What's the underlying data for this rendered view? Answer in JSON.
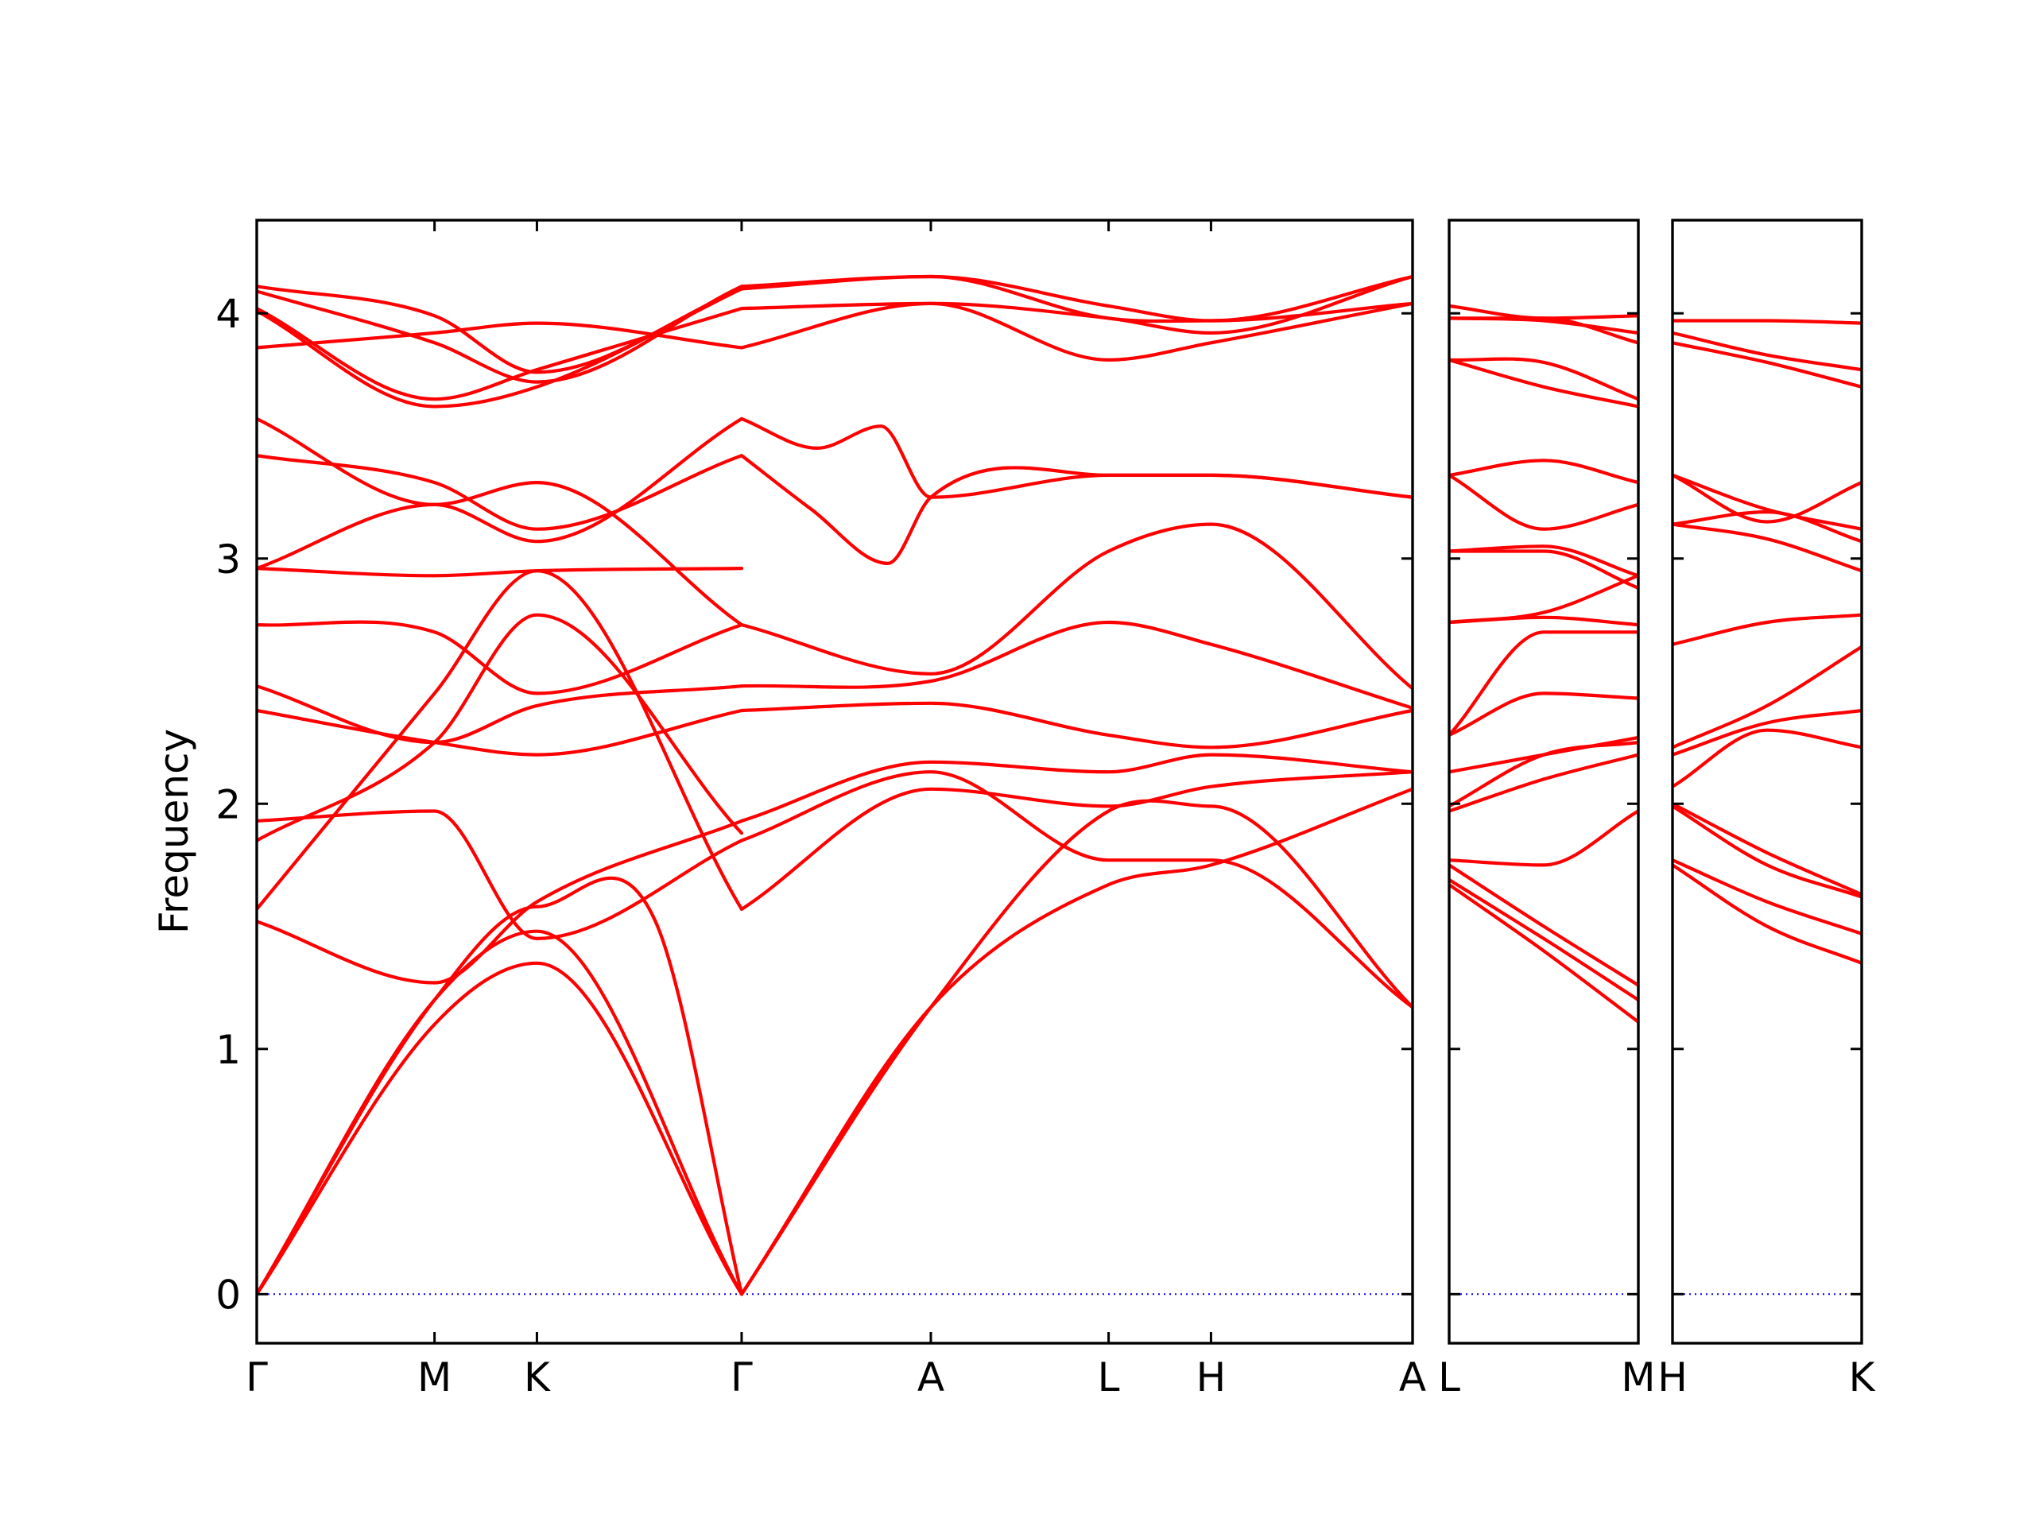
{
  "chart_data": {
    "type": "line",
    "ylabel": "Frequency",
    "xlabel": "",
    "ylim": [
      -0.2,
      4.38
    ],
    "yticks": [
      0,
      1,
      2,
      3,
      4
    ],
    "grid": false,
    "colors": {
      "bands": "#ff0000",
      "zero_line": "#0000ff",
      "frame": "#000000"
    },
    "panels": [
      {
        "id": "panel-1",
        "path_labels": [
          "Γ",
          "M",
          "K",
          "Γ",
          "A",
          "L",
          "H",
          "A"
        ],
        "path_distance": [
          0,
          0.1538,
          0.2424,
          0.4195,
          0.5832,
          0.737,
          0.8256,
          1.0
        ],
        "bands": [
          {
            "x": [
              0,
              0.1538,
              0.2424,
              0.4195
            ],
            "values": [
              0,
              1.1,
              1.35,
              0
            ]
          },
          {
            "x": [
              0,
              0.1538,
              0.2424,
              0.4195
            ],
            "values": [
              0,
              1.2,
              1.48,
              0
            ]
          },
          {
            "x": [
              0,
              0.1538,
              0.2424,
              0.345,
              0.4195
            ],
            "values": [
              0,
              1.2,
              1.58,
              1.52,
              0
            ]
          },
          {
            "x": [
              0,
              0.1538,
              0.2424,
              0.4195
            ],
            "values": [
              1.52,
              1.27,
              1.6,
              1.93
            ]
          },
          {
            "x": [
              0,
              0.1538,
              0.2424,
              0.4195
            ],
            "values": [
              1.57,
              2.45,
              2.95,
              1.57
            ]
          },
          {
            "x": [
              0,
              0.1538,
              0.2424,
              0.4195
            ],
            "values": [
              1.93,
              1.97,
              1.45,
              1.85
            ]
          },
          {
            "x": [
              0,
              0.1538,
              0.2424,
              0.4195
            ],
            "values": [
              1.85,
              2.25,
              2.77,
              1.88
            ]
          },
          {
            "x": [
              0,
              0.1538,
              0.2424,
              0.4195
            ],
            "values": [
              2.38,
              2.25,
              2.2,
              2.38
            ]
          },
          {
            "x": [
              0,
              0.1538,
              0.2424,
              0.4195
            ],
            "values": [
              2.48,
              2.25,
              2.4,
              2.48
            ]
          },
          {
            "x": [
              0,
              0.1538,
              0.2424,
              0.4195
            ],
            "values": [
              2.73,
              2.7,
              2.45,
              2.73
            ]
          },
          {
            "x": [
              0,
              0.1538,
              0.2424,
              0.4195
            ],
            "values": [
              2.96,
              2.93,
              2.95,
              2.96
            ]
          },
          {
            "x": [
              0,
              0.1538,
              0.2424,
              0.4195
            ],
            "values": [
              2.96,
              3.22,
              3.07,
              3.57
            ]
          },
          {
            "x": [
              0,
              0.1538,
              0.2424,
              0.4195
            ],
            "values": [
              3.42,
              3.31,
              3.12,
              3.42
            ]
          },
          {
            "x": [
              0,
              0.1538,
              0.2424,
              0.4195
            ],
            "values": [
              3.57,
              3.22,
              3.31,
              2.73
            ]
          },
          {
            "x": [
              0,
              0.1538,
              0.2424,
              0.4195
            ],
            "values": [
              3.86,
              3.92,
              3.96,
              3.86
            ]
          },
          {
            "x": [
              0,
              0.1538,
              0.2424,
              0.4195
            ],
            "values": [
              4.01,
              3.62,
              3.7,
              4.1
            ]
          },
          {
            "x": [
              0,
              0.1538,
              0.2424,
              0.4195
            ],
            "values": [
              4.02,
              3.65,
              3.77,
              4.02
            ]
          },
          {
            "x": [
              0,
              0.1538,
              0.2424,
              0.4195
            ],
            "values": [
              4.09,
              3.88,
              3.72,
              4.11
            ]
          },
          {
            "x": [
              0,
              0.1538,
              0.2424,
              0.4195
            ],
            "values": [
              4.11,
              3.99,
              3.76,
              4.1
            ]
          },
          {
            "x": [
              0.4195,
              0.5832,
              0.737,
              0.8256,
              1.0
            ],
            "values": [
              0,
              1.17,
              1.67,
              1.75,
              2.06
            ]
          },
          {
            "x": [
              0.4195,
              0.5832,
              0.737,
              0.8256,
              1.0
            ],
            "values": [
              0,
              1.17,
              1.97,
              1.99,
              1.17
            ]
          },
          {
            "x": [
              0.4195,
              0.5832,
              0.737,
              0.8256,
              1.0
            ],
            "values": [
              1.57,
              2.06,
              1.99,
              2.07,
              2.13
            ]
          },
          {
            "x": [
              0.4195,
              0.5832,
              0.737,
              0.8256,
              1.0
            ],
            "values": [
              1.85,
              2.13,
              1.77,
              1.77,
              1.17
            ]
          },
          {
            "x": [
              0.4195,
              0.5832,
              0.737,
              0.8256,
              1.0
            ],
            "values": [
              1.93,
              2.17,
              2.13,
              2.2,
              2.13
            ]
          },
          {
            "x": [
              0.4195,
              0.5832,
              0.737,
              0.8256,
              1.0
            ],
            "values": [
              2.38,
              2.41,
              2.28,
              2.23,
              2.38
            ]
          },
          {
            "x": [
              0.4195,
              0.5832,
              0.737,
              0.8256,
              1.0
            ],
            "values": [
              2.48,
              2.5,
              2.74,
              2.65,
              2.39
            ]
          },
          {
            "x": [
              0.4195,
              0.5832,
              0.737,
              0.8256,
              1.0
            ],
            "values": [
              2.73,
              2.53,
              3.03,
              3.14,
              2.47
            ]
          },
          {
            "x": [
              0.4195,
              0.48,
              0.546,
              0.5832,
              0.737,
              0.8256,
              1.0
            ],
            "values": [
              3.42,
              3.2,
              2.98,
              3.25,
              3.34,
              3.34,
              3.25
            ]
          },
          {
            "x": [
              0.4195,
              0.485,
              0.54,
              0.5832,
              0.737,
              0.8256,
              1.0
            ],
            "values": [
              3.57,
              3.45,
              3.54,
              3.25,
              3.34,
              3.34,
              3.25
            ]
          },
          {
            "x": [
              0.4195,
              0.5832,
              0.737,
              0.8256,
              1.0
            ],
            "values": [
              3.86,
              4.04,
              3.81,
              3.88,
              4.04
            ]
          },
          {
            "x": [
              0.4195,
              0.5832,
              0.737,
              0.8256,
              1.0
            ],
            "values": [
              4.02,
              4.04,
              3.98,
              3.92,
              4.15
            ]
          },
          {
            "x": [
              0.4195,
              0.5832,
              0.737,
              0.8256,
              1.0
            ],
            "values": [
              4.1,
              4.15,
              3.98,
              3.97,
              4.15
            ]
          },
          {
            "x": [
              0.4195,
              0.5832,
              0.737,
              0.8256,
              1.0
            ],
            "values": [
              4.11,
              4.15,
              4.03,
              3.97,
              4.04
            ]
          }
        ]
      },
      {
        "id": "panel-2",
        "path_labels": [
          "L",
          "M"
        ],
        "path_distance": [
          0,
          1.0
        ],
        "bands": [
          {
            "x": [
              0,
              0.5,
              1.0
            ],
            "values": [
              1.67,
              1.4,
              1.11
            ]
          },
          {
            "x": [
              0,
              0.5,
              1.0
            ],
            "values": [
              1.69,
              1.45,
              1.2
            ]
          },
          {
            "x": [
              0,
              0.5,
              1.0
            ],
            "values": [
              1.75,
              1.5,
              1.26
            ]
          },
          {
            "x": [
              0,
              0.5,
              1.0
            ],
            "values": [
              1.77,
              1.75,
              1.97
            ]
          },
          {
            "x": [
              0,
              0.5,
              1.0
            ],
            "values": [
              1.97,
              2.1,
              2.2
            ]
          },
          {
            "x": [
              0,
              0.5,
              1.0
            ],
            "values": [
              1.99,
              2.2,
              2.25
            ]
          },
          {
            "x": [
              0,
              0.5,
              1.0
            ],
            "values": [
              2.13,
              2.2,
              2.27
            ]
          },
          {
            "x": [
              0,
              0.5,
              1.0
            ],
            "values": [
              2.28,
              2.45,
              2.43
            ]
          },
          {
            "x": [
              0,
              0.5,
              1.0
            ],
            "values": [
              2.28,
              2.7,
              2.7
            ]
          },
          {
            "x": [
              0,
              0.5,
              1.0
            ],
            "values": [
              2.74,
              2.76,
              2.73
            ]
          },
          {
            "x": [
              0,
              0.5,
              1.0
            ],
            "values": [
              2.74,
              2.78,
              2.93
            ]
          },
          {
            "x": [
              0,
              0.5,
              1.0
            ],
            "values": [
              3.03,
              3.03,
              2.88
            ]
          },
          {
            "x": [
              0,
              0.5,
              1.0
            ],
            "values": [
              3.03,
              3.05,
              2.93
            ]
          },
          {
            "x": [
              0,
              0.5,
              1.0
            ],
            "values": [
              3.34,
              3.12,
              3.22
            ]
          },
          {
            "x": [
              0,
              0.5,
              1.0
            ],
            "values": [
              3.34,
              3.4,
              3.31
            ]
          },
          {
            "x": [
              0,
              0.5,
              1.0
            ],
            "values": [
              3.81,
              3.7,
              3.62
            ]
          },
          {
            "x": [
              0,
              0.5,
              1.0
            ],
            "values": [
              3.81,
              3.8,
              3.65
            ]
          },
          {
            "x": [
              0,
              0.5,
              1.0
            ],
            "values": [
              3.98,
              3.98,
              3.88
            ]
          },
          {
            "x": [
              0,
              0.5,
              1.0
            ],
            "values": [
              3.98,
              3.97,
              3.92
            ]
          },
          {
            "x": [
              0,
              0.5,
              1.0
            ],
            "values": [
              4.03,
              3.98,
              3.99
            ]
          }
        ]
      },
      {
        "id": "panel-3",
        "path_labels": [
          "H",
          "K"
        ],
        "path_distance": [
          0,
          1.0
        ],
        "bands": [
          {
            "x": [
              0,
              0.5,
              1.0
            ],
            "values": [
              1.75,
              1.5,
              1.35
            ]
          },
          {
            "x": [
              0,
              0.5,
              1.0
            ],
            "values": [
              1.77,
              1.6,
              1.47
            ]
          },
          {
            "x": [
              0,
              0.5,
              1.0
            ],
            "values": [
              1.99,
              1.75,
              1.62
            ]
          },
          {
            "x": [
              0,
              0.5,
              1.0
            ],
            "values": [
              2.0,
              1.8,
              1.63
            ]
          },
          {
            "x": [
              0,
              0.5,
              1.0
            ],
            "values": [
              2.07,
              2.3,
              2.23
            ]
          },
          {
            "x": [
              0,
              0.5,
              1.0
            ],
            "values": [
              2.2,
              2.33,
              2.38
            ]
          },
          {
            "x": [
              0,
              0.5,
              1.0
            ],
            "values": [
              2.23,
              2.4,
              2.64
            ]
          },
          {
            "x": [
              0,
              0.5,
              1.0
            ],
            "values": [
              2.65,
              2.74,
              2.77
            ]
          },
          {
            "x": [
              0,
              0.5,
              1.0
            ],
            "values": [
              3.14,
              3.08,
              2.95
            ]
          },
          {
            "x": [
              0,
              0.5,
              1.0
            ],
            "values": [
              3.14,
              3.19,
              3.07
            ]
          },
          {
            "x": [
              0,
              0.5,
              1.0
            ],
            "values": [
              3.34,
              3.2,
              3.12
            ]
          },
          {
            "x": [
              0,
              0.5,
              1.0
            ],
            "values": [
              3.34,
              3.15,
              3.31
            ]
          },
          {
            "x": [
              0,
              0.5,
              1.0
            ],
            "values": [
              3.88,
              3.8,
              3.7
            ]
          },
          {
            "x": [
              0,
              0.5,
              1.0
            ],
            "values": [
              3.92,
              3.83,
              3.77
            ]
          },
          {
            "x": [
              0,
              0.5,
              1.0
            ],
            "values": [
              3.97,
              3.97,
              3.96
            ]
          }
        ]
      }
    ]
  }
}
